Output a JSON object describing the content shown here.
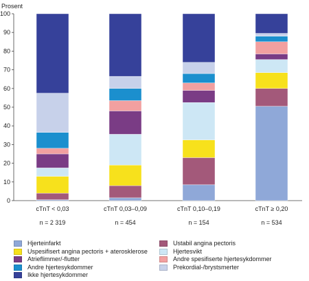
{
  "chart_data": {
    "type": "bar",
    "stacked": true,
    "ylabel": "Prosent",
    "ylim": [
      0,
      100
    ],
    "yticks": [
      "0",
      "10",
      "20",
      "30",
      "40",
      "50",
      "60",
      "70",
      "80",
      "90",
      "100"
    ],
    "grid": false,
    "legend_position": "bottom",
    "categories": [
      "cTnT < 0,03",
      "cTnT 0,03–0,09",
      "cTnT 0,10–0,19",
      "cTnT ≥ 0,20"
    ],
    "n_labels": [
      "n = 2 319",
      "n = 454",
      "n = 154",
      "n = 534"
    ],
    "series": [
      {
        "name": "Hjerteinfarkt",
        "color": "#8fa8d8",
        "values": [
          0.5,
          1.5,
          8.5,
          50.5
        ]
      },
      {
        "name": "Ustabil angina pectoris",
        "color": "#a3597a",
        "values": [
          3.5,
          6.5,
          14.5,
          9.5
        ]
      },
      {
        "name": "Uspesifisert angina pectoris + aterosklerose",
        "color": "#f7e11c",
        "values": [
          9.0,
          11.0,
          9.5,
          8.5
        ]
      },
      {
        "name": "Hjertesvikt",
        "color": "#cde7f5",
        "values": [
          4.5,
          16.5,
          20.0,
          7.0
        ]
      },
      {
        "name": "Atrieflimmer/-flutter",
        "color": "#7a3c85",
        "values": [
          7.5,
          12.5,
          6.5,
          3.0
        ]
      },
      {
        "name": "Andre spesifiserte hjertesykdommer",
        "color": "#f2a0a0",
        "values": [
          3.0,
          5.5,
          4.0,
          6.5
        ]
      },
      {
        "name": "Andre hjertesykdommer",
        "color": "#1b8fce",
        "values": [
          8.5,
          6.5,
          5.0,
          3.0
        ]
      },
      {
        "name": "Prekordial-/brystsmerter",
        "color": "#c7d1ea",
        "values": [
          21.0,
          6.5,
          6.0,
          1.5
        ]
      },
      {
        "name": "Ikke hjertesykdommer",
        "color": "#36419a",
        "values": [
          42.5,
          33.5,
          26.0,
          10.5
        ]
      }
    ],
    "legend_order": [
      "Hjerteinfarkt",
      "Ustabil angina pectoris",
      "Uspesifisert angina pectoris + aterosklerose",
      "Hjertesvikt",
      "Atrieflimmer/-flutter",
      "Andre spesifiserte hjertesykdommer",
      "Andre hjertesykdommer",
      "Prekordial-/brystsmerter",
      "Ikke hjertesykdommer"
    ]
  }
}
